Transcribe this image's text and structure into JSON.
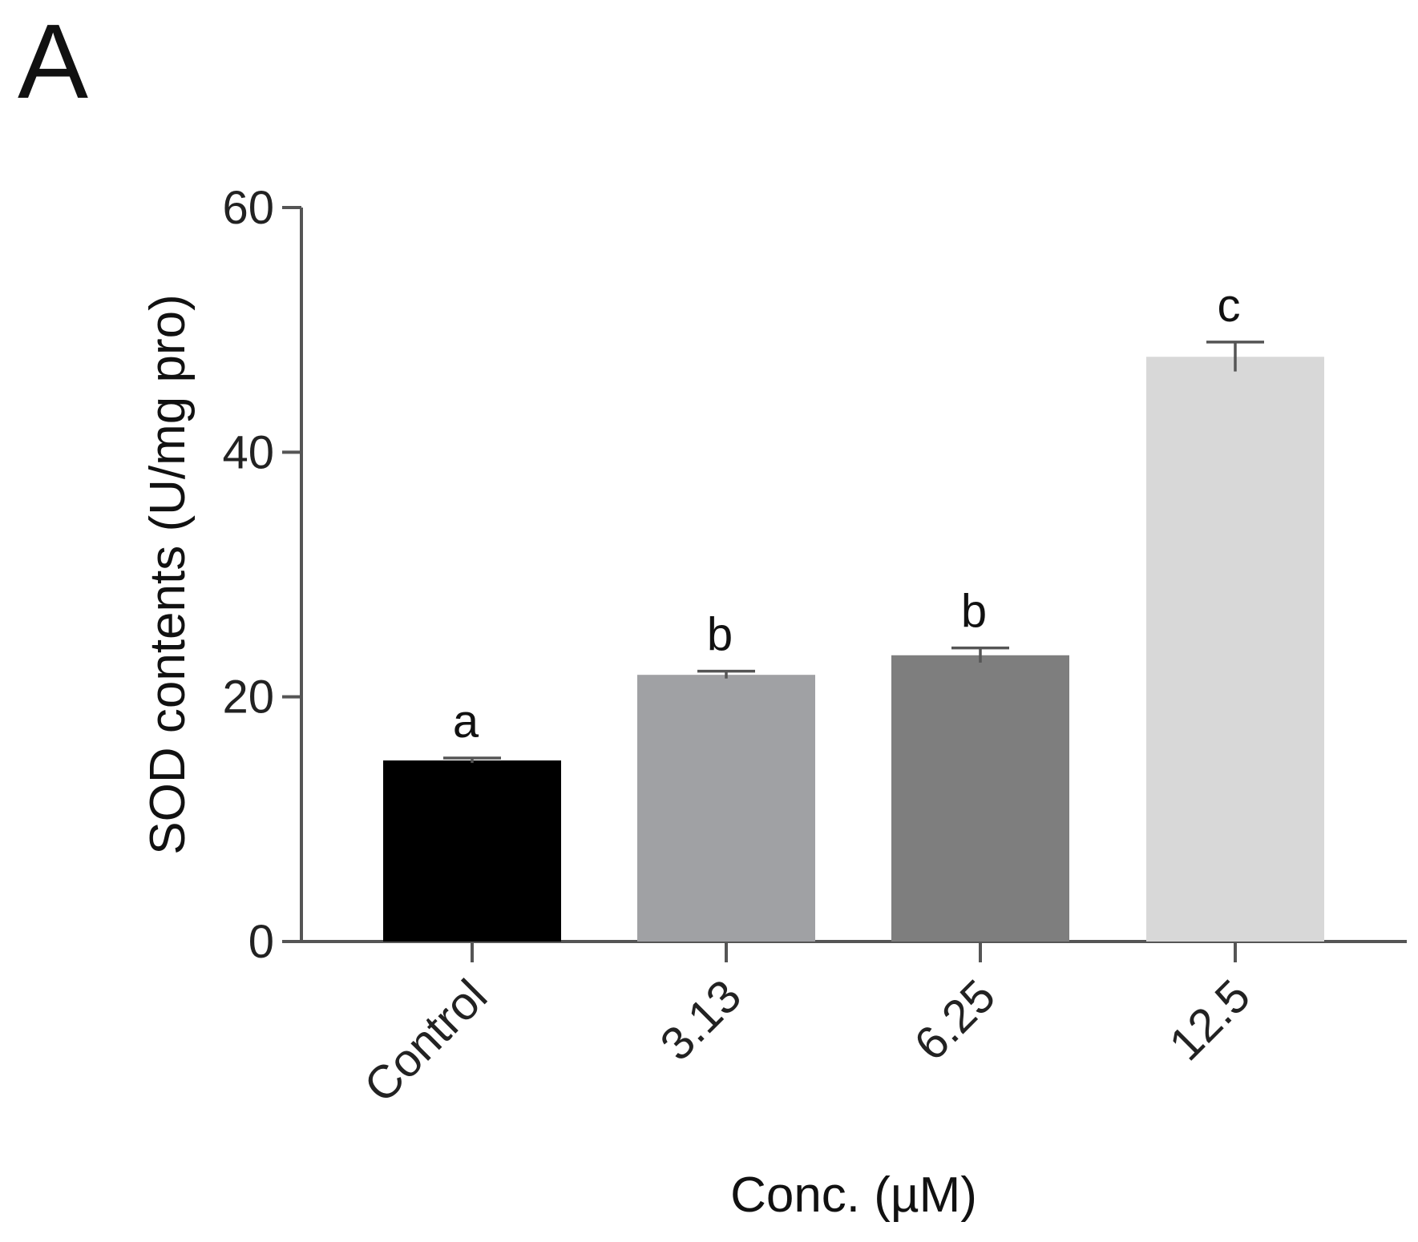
{
  "panel_label": "A",
  "chart_data": {
    "type": "bar",
    "categories": [
      "Control",
      "3.13",
      "6.25",
      "12.5"
    ],
    "values": [
      14.8,
      21.8,
      23.4,
      47.8
    ],
    "errors": [
      0.2,
      0.3,
      0.6,
      1.2
    ],
    "significance_letters": [
      "a",
      "b",
      "b",
      "c"
    ],
    "bar_colors": [
      "#000000",
      "#a0a1a4",
      "#7e7e7e",
      "#d8d8d8"
    ],
    "xlabel": "Conc. (µM)",
    "ylabel": "SOD contents (U/mg pro)",
    "ylim": [
      0,
      60
    ],
    "yticks": [
      0,
      20,
      40,
      60
    ],
    "grid": false,
    "legend": "none"
  }
}
